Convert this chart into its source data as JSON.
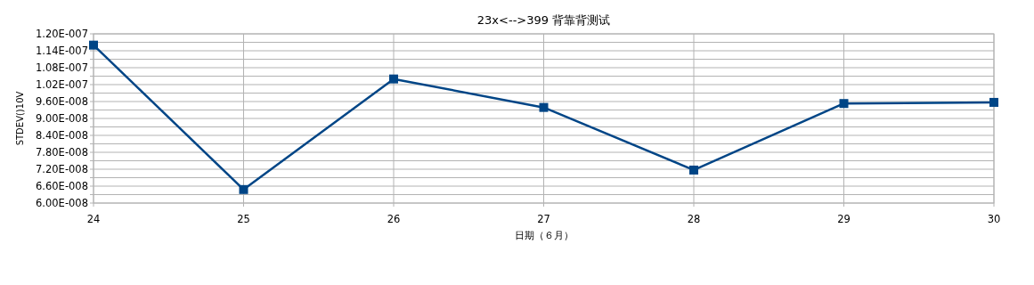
{
  "chart_data": {
    "type": "line",
    "title": "23x<-->399 背靠背测试",
    "xlabel": "日期（６月）",
    "ylabel": "STDEV()10V",
    "x": [
      24,
      25,
      26,
      27,
      28,
      29,
      30
    ],
    "series": [
      {
        "color": "#004586",
        "values": [
          1.16e-07,
          6.48e-08,
          1.04e-07,
          9.39e-08,
          7.17e-08,
          9.53e-08,
          9.57e-08
        ]
      }
    ],
    "xlim": [
      24,
      30
    ],
    "xticks": [
      24,
      25,
      26,
      27,
      28,
      29,
      30
    ],
    "ylim": [
      6e-08,
      1.2e-07
    ],
    "yticks": [
      {
        "value": 6e-08,
        "label": "6.00E-008"
      },
      {
        "value": 6.3e-08,
        "label": null
      },
      {
        "value": 6.6e-08,
        "label": "6.60E-008"
      },
      {
        "value": 6.9e-08,
        "label": null
      },
      {
        "value": 7.2e-08,
        "label": "7.20E-008"
      },
      {
        "value": 7.5e-08,
        "label": null
      },
      {
        "value": 7.8e-08,
        "label": "7.80E-008"
      },
      {
        "value": 8.1e-08,
        "label": null
      },
      {
        "value": 8.4e-08,
        "label": "8.40E-008"
      },
      {
        "value": 8.7e-08,
        "label": null
      },
      {
        "value": 9e-08,
        "label": "9.00E-008"
      },
      {
        "value": 9.3e-08,
        "label": null
      },
      {
        "value": 9.6e-08,
        "label": "9.60E-008"
      },
      {
        "value": 9.9e-08,
        "label": null
      },
      {
        "value": 1.02e-07,
        "label": "1.02E-007"
      },
      {
        "value": 1.05e-07,
        "label": null
      },
      {
        "value": 1.08e-07,
        "label": "1.08E-007"
      },
      {
        "value": 1.11e-07,
        "label": null
      },
      {
        "value": 1.14e-07,
        "label": "1.14E-007"
      },
      {
        "value": 1.17e-07,
        "label": null
      },
      {
        "value": 1.2e-07,
        "label": "1.20E-007"
      }
    ],
    "grid": true,
    "marker": "square",
    "line_style": "solid"
  }
}
